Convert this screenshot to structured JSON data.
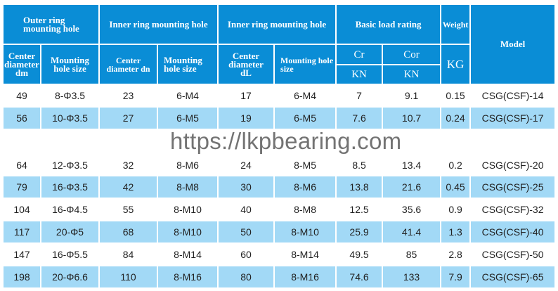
{
  "header": {
    "outer": "Outer ring mounting hole",
    "inner1": "Inner ring mounting hole",
    "inner2": "Inner ring mounting hole",
    "load": "Basic load rating",
    "weight": "Weight",
    "model": "Model",
    "center_dm": "Center diameter dm",
    "mount1": "Mounting hole size",
    "center_dn": "Center diameter dn",
    "mount2": "Mounting hole size",
    "center_dl": "Center diameter dL",
    "mount3": "Mounting hole size",
    "cr": "Cr",
    "cor": "Cor",
    "kn1": "KN",
    "kn2": "KN",
    "kg": "KG"
  },
  "rows": [
    [
      "49",
      "8-Φ3.5",
      "23",
      "6-M4",
      "17",
      "6-M4",
      "7",
      "9.1",
      "0.15",
      "CSG(CSF)-14"
    ],
    [
      "56",
      "10-Φ3.5",
      "27",
      "6-M5",
      "19",
      "6-M5",
      "7.6",
      "10.7",
      "0.24",
      "CSG(CSF)-17"
    ],
    [
      "64",
      "12-Φ3.5",
      "32",
      "8-M6",
      "24",
      "8-M5",
      "8.5",
      "13.4",
      "0.2",
      "CSG(CSF)-20"
    ],
    [
      "79",
      "16-Φ3.5",
      "42",
      "8-M8",
      "30",
      "8-M6",
      "13.8",
      "21.6",
      "0.45",
      "CSG(CSF)-25"
    ],
    [
      "104",
      "16-Φ4.5",
      "55",
      "8-M10",
      "40",
      "8-M8",
      "12.5",
      "35.6",
      "0.9",
      "CSG(CSF)-32"
    ],
    [
      "117",
      "20-Φ5",
      "68",
      "8-M10",
      "50",
      "8-M10",
      "25.9",
      "41.4",
      "1.3",
      "CSG(CSF)-40"
    ],
    [
      "147",
      "16-Φ5.5",
      "84",
      "8-M14",
      "60",
      "8-M14",
      "49.5",
      "85",
      "2.8",
      "CSG(CSF)-50"
    ],
    [
      "198",
      "20-Φ6.6",
      "110",
      "8-M16",
      "80",
      "8-M16",
      "74.6",
      "133",
      "7.9",
      "CSG(CSF)-65"
    ]
  ],
  "watermark": "https://lkpbearing.com"
}
